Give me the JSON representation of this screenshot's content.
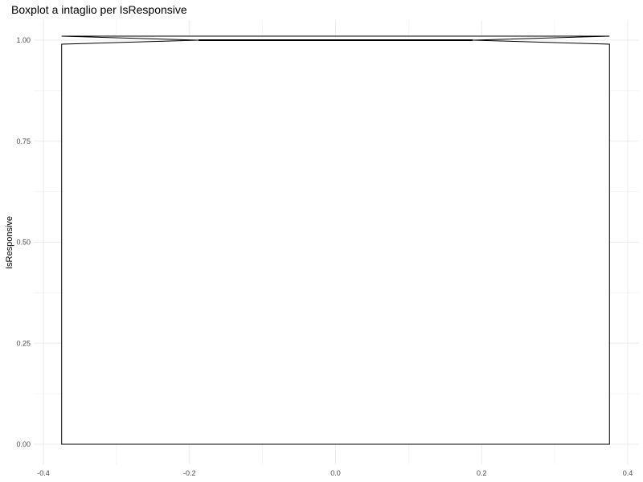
{
  "chart_data": {
    "type": "boxplot",
    "notched": true,
    "title": "Boxplot a intaglio per IsResponsive",
    "xlabel": "",
    "ylabel": "IsResponsive",
    "xlim": [
      -0.4,
      0.4
    ],
    "ylim": [
      0,
      1
    ],
    "x_ticks": [
      -0.4,
      -0.2,
      0.0,
      0.2,
      0.4
    ],
    "x_tick_labels": [
      "-0.4",
      "-0.2",
      "0.0",
      "0.2",
      "0.4"
    ],
    "y_ticks": [
      0,
      0.25,
      0.5,
      0.75,
      1.0
    ],
    "y_tick_labels": [
      "0.00",
      "0.25",
      "0.50",
      "0.75",
      "1.00"
    ],
    "grid": true,
    "box": {
      "x_center": 0,
      "x_left": -0.375,
      "x_right": 0.375,
      "q1": 0,
      "median": 1,
      "q3": 1,
      "notch_low": 0.99,
      "notch_high": 1.01,
      "notch_x_left": -0.1875,
      "notch_x_right": 0.1875,
      "whisker_low": 0,
      "whisker_high": 1
    },
    "colors": {
      "box_fill": "#ffffff",
      "box_stroke": "#000000",
      "grid": "#ebebeb",
      "tick_text": "#4d4d4d"
    }
  }
}
